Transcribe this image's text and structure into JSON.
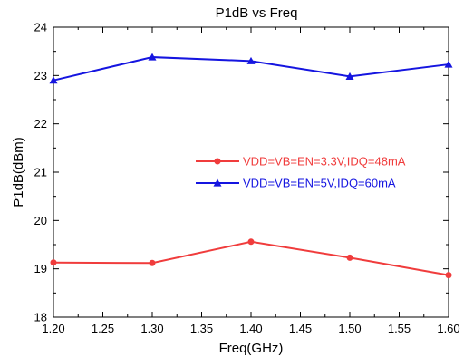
{
  "chart_data": {
    "type": "line",
    "title": "P1dB vs Freq",
    "xlabel": "Freq(GHz)",
    "ylabel": "P1dB(dBm)",
    "xlim": [
      1.2,
      1.6
    ],
    "ylim": [
      18,
      24
    ],
    "x": [
      1.2,
      1.3,
      1.4,
      1.5,
      1.6
    ],
    "x_ticks": [
      "1.20",
      "1.25",
      "1.30",
      "1.35",
      "1.40",
      "1.45",
      "1.50",
      "1.55",
      "1.60"
    ],
    "y_ticks": [
      "18",
      "19",
      "20",
      "21",
      "22",
      "23",
      "24"
    ],
    "grid": false,
    "legend_position": "center-right",
    "series": [
      {
        "name": "VDD=VB=EN=3.3V,IDQ=48mA",
        "color": "#f03c3c",
        "marker": "circle",
        "values": [
          19.13,
          19.12,
          19.56,
          19.23,
          18.87
        ]
      },
      {
        "name": "VDD=VB=EN=5V,IDQ=60mA",
        "color": "#1515e0",
        "marker": "triangle",
        "values": [
          22.9,
          23.38,
          23.3,
          22.98,
          23.23
        ]
      }
    ]
  }
}
